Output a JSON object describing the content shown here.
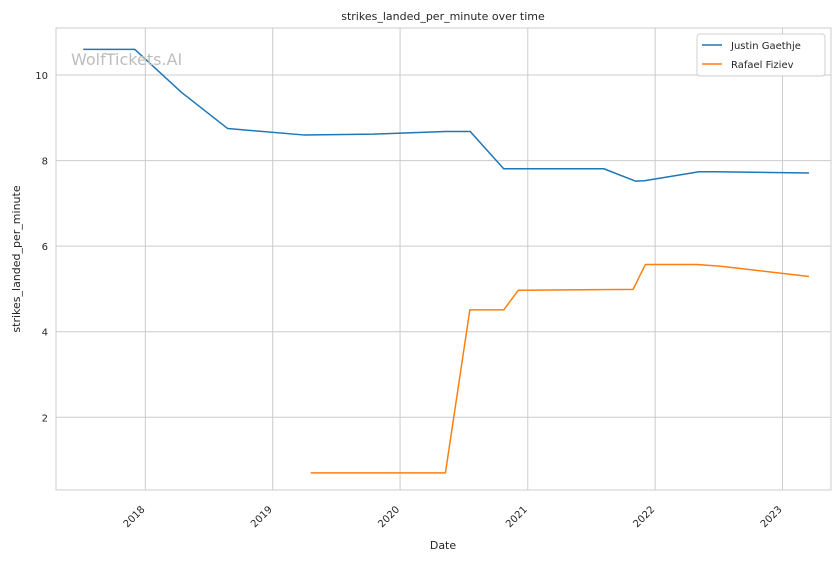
{
  "chart_data": {
    "type": "line",
    "title": "strikes_landed_per_minute over time",
    "xlabel": "Date",
    "ylabel": "strikes_landed_per_minute",
    "watermark": "WolfTickets.AI",
    "grid": true,
    "legend_position": "top-right",
    "x_ticks": [
      "2018",
      "2019",
      "2020",
      "2021",
      "2022",
      "2023"
    ],
    "y_ticks": [
      2,
      4,
      6,
      8,
      10
    ],
    "xlim": [
      "2017-04-20",
      "2023-05-20"
    ],
    "ylim": [
      0.3,
      11.1
    ],
    "series": [
      {
        "name": "Justin Gaethje",
        "color": "#1f77b4",
        "points": [
          [
            "2017-07-07",
            10.6
          ],
          [
            "2017-12-02",
            10.6
          ],
          [
            "2018-04-14",
            9.6
          ],
          [
            "2018-08-25",
            8.75
          ],
          [
            "2019-03-30",
            8.6
          ],
          [
            "2019-10-18",
            8.62
          ],
          [
            "2020-05-09",
            8.68
          ],
          [
            "2020-07-20",
            8.68
          ],
          [
            "2020-10-24",
            7.81
          ],
          [
            "2021-08-07",
            7.81
          ],
          [
            "2021-11-06",
            7.52
          ],
          [
            "2021-12-01",
            7.53
          ],
          [
            "2022-05-07",
            7.74
          ],
          [
            "2022-06-20",
            7.74
          ],
          [
            "2023-03-18",
            7.71
          ]
        ]
      },
      {
        "name": "Rafael Fiziev",
        "color": "#ff7f0e",
        "points": [
          [
            "2019-04-20",
            0.7
          ],
          [
            "2020-05-10",
            0.7
          ],
          [
            "2020-07-19",
            4.51
          ],
          [
            "2020-10-24",
            4.51
          ],
          [
            "2020-12-05",
            4.97
          ],
          [
            "2021-10-30",
            4.99
          ],
          [
            "2021-12-04",
            5.57
          ],
          [
            "2022-05-01",
            5.57
          ],
          [
            "2022-07-09",
            5.53
          ],
          [
            "2023-03-18",
            5.29
          ]
        ]
      }
    ]
  }
}
